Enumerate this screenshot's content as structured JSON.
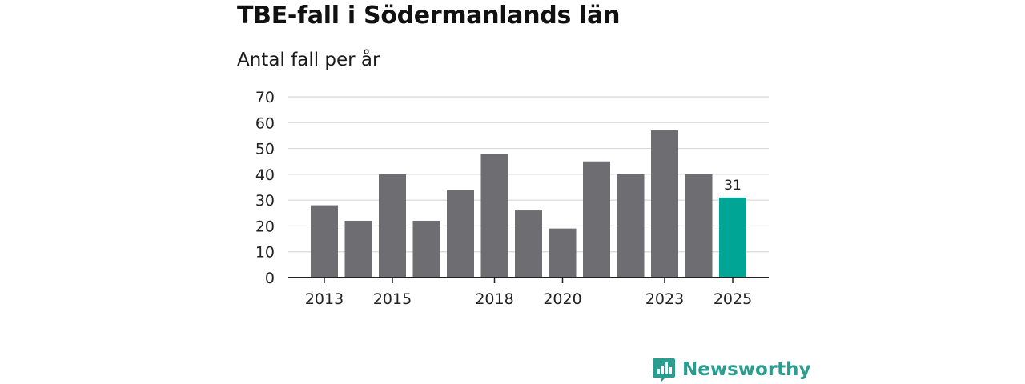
{
  "title": "TBE-fall i Södermanlands län",
  "subtitle": "Antal fall per år",
  "brand": {
    "name": "Newsworthy",
    "icon": "newsworthy-logo-icon",
    "color": "#2a9d8f"
  },
  "colors": {
    "bar": "#6e6d72",
    "highlight": "#00a596",
    "grid": "#d9d9d9",
    "axis": "#222222"
  },
  "chart_data": {
    "type": "bar",
    "title": "TBE-fall i Södermanlands län",
    "subtitle": "Antal fall per år",
    "categories": [
      "2013",
      "2014",
      "2015",
      "2016",
      "2017",
      "2018",
      "2019",
      "2020",
      "2021",
      "2022",
      "2023",
      "2024",
      "2025"
    ],
    "values": [
      28,
      22,
      40,
      22,
      34,
      48,
      26,
      19,
      45,
      40,
      57,
      40,
      31
    ],
    "x_tick_labels": [
      "2013",
      "2015",
      "2018",
      "2020",
      "2023",
      "2025"
    ],
    "highlight": {
      "category": "2025",
      "label": "31"
    },
    "ylim": [
      0,
      70
    ],
    "yticks": [
      0,
      10,
      20,
      30,
      40,
      50,
      60,
      70
    ],
    "xlabel": "",
    "ylabel": "",
    "grid": true
  }
}
